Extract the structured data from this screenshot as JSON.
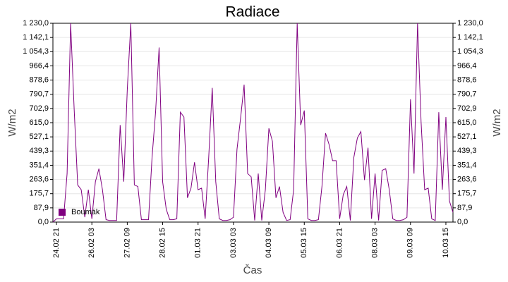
{
  "chart_data": {
    "type": "line",
    "title": "Radiace",
    "ylabel": "W/m2",
    "y2label": "W/m2",
    "xlabel": "Čas",
    "x": [
      "24.02 18",
      "24.02 21",
      "25.02 00",
      "25.02 03",
      "25.02 06",
      "25.02 09",
      "25.02 12",
      "25.02 15",
      "25.02 18",
      "25.02 21",
      "26.02 00",
      "26.02 03",
      "26.02 06",
      "26.02 09",
      "26.02 12",
      "26.02 15",
      "26.02 18",
      "26.02 21",
      "27.02 00",
      "27.02 03",
      "27.02 06",
      "27.02 09",
      "27.02 12",
      "27.02 15",
      "27.02 18",
      "27.02 21",
      "28.02 00",
      "28.02 03",
      "28.02 06",
      "28.02 09",
      "28.02 12",
      "28.02 15",
      "28.02 18",
      "28.02 21",
      "01.03 00",
      "01.03 03",
      "01.03 06",
      "01.03 09",
      "01.03 12",
      "01.03 15",
      "01.03 18",
      "01.03 21",
      "02.03 00",
      "02.03 03",
      "02.03 06",
      "02.03 09",
      "02.03 12",
      "02.03 15",
      "02.03 18",
      "02.03 21",
      "03.03 00",
      "03.03 03",
      "03.03 06",
      "03.03 09",
      "03.03 12",
      "03.03 15",
      "03.03 18",
      "03.03 21",
      "04.03 00",
      "04.03 03",
      "04.03 06",
      "04.03 09",
      "04.03 12",
      "04.03 15",
      "04.03 18",
      "04.03 21",
      "05.03 00",
      "05.03 03",
      "05.03 06",
      "05.03 09",
      "05.03 12",
      "05.03 15",
      "05.03 18",
      "05.03 21",
      "06.03 00",
      "06.03 03",
      "06.03 06",
      "06.03 09",
      "06.03 12",
      "06.03 15",
      "06.03 18",
      "06.03 21",
      "07.03 00",
      "07.03 03",
      "07.03 06",
      "07.03 09",
      "07.03 12",
      "07.03 15",
      "07.03 18",
      "07.03 21",
      "08.03 00",
      "08.03 03",
      "08.03 06",
      "08.03 09",
      "08.03 12",
      "08.03 15",
      "08.03 18",
      "08.03 21",
      "09.03 00",
      "09.03 03",
      "09.03 06",
      "09.03 09",
      "09.03 12",
      "09.03 15",
      "09.03 18",
      "09.03 21",
      "10.03 00",
      "10.03 03",
      "10.03 06",
      "10.03 09",
      "10.03 12",
      "10.03 15",
      "10.03 18",
      "10.03 21"
    ],
    "series": [
      {
        "name": "Boumák",
        "color": "#800080",
        "values": [
          0,
          20,
          20,
          20,
          300,
          1230,
          700,
          230,
          200,
          30,
          200,
          20,
          250,
          330,
          200,
          15,
          10,
          10,
          10,
          600,
          250,
          820,
          1230,
          230,
          220,
          15,
          15,
          15,
          400,
          680,
          1080,
          250,
          80,
          15,
          15,
          20,
          680,
          650,
          150,
          210,
          370,
          200,
          210,
          20,
          400,
          830,
          250,
          20,
          10,
          10,
          15,
          30,
          450,
          640,
          850,
          300,
          280,
          10,
          300,
          10,
          200,
          580,
          500,
          150,
          220,
          60,
          10,
          15,
          200,
          1230,
          600,
          690,
          20,
          10,
          10,
          15,
          220,
          550,
          480,
          380,
          380,
          20,
          170,
          220,
          10,
          400,
          520,
          560,
          260,
          460,
          20,
          300,
          10,
          320,
          330,
          200,
          20,
          10,
          10,
          15,
          30,
          760,
          300,
          1230,
          620,
          200,
          210,
          20,
          10,
          680,
          200,
          650,
          130,
          60
        ]
      }
    ],
    "xlim": [
      "24.02 18",
      "10.03 21"
    ],
    "xticks": [
      "24.02 21",
      "26.02 03",
      "27.02 09",
      "28.02 15",
      "01.03 21",
      "03.03 03",
      "04.03 09",
      "05.03 15",
      "06.03 21",
      "08.03 03",
      "09.03 09",
      "10.03 15"
    ],
    "ylim": [
      0,
      1230
    ],
    "yticks": [
      {
        "value": 0,
        "label": "0,0"
      },
      {
        "value": 87.9,
        "label": "87,9"
      },
      {
        "value": 175.7,
        "label": "175,7"
      },
      {
        "value": 263.6,
        "label": "263,6"
      },
      {
        "value": 351.4,
        "label": "351,4"
      },
      {
        "value": 439.3,
        "label": "439,3"
      },
      {
        "value": 527.1,
        "label": "527,1"
      },
      {
        "value": 615,
        "label": "615,0"
      },
      {
        "value": 702.9,
        "label": "702,9"
      },
      {
        "value": 790.7,
        "label": "790,7"
      },
      {
        "value": 878.6,
        "label": "878,6"
      },
      {
        "value": 966.4,
        "label": "966,4"
      },
      {
        "value": 1054.3,
        "label": "1 054,3"
      },
      {
        "value": 1142.1,
        "label": "1 142,1"
      },
      {
        "value": 1230,
        "label": "1 230,0"
      }
    ],
    "grid": true,
    "legend": "lower left"
  }
}
